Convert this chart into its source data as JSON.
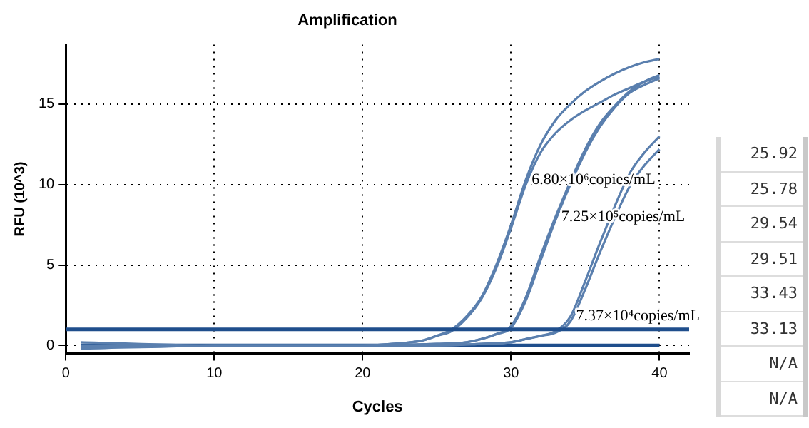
{
  "chart_data": {
    "type": "line",
    "title": "Amplification",
    "xlabel": "Cycles",
    "ylabel": "RFU (10^3)",
    "xlim": [
      0,
      42
    ],
    "ylim": [
      -0.5,
      18.7
    ],
    "xticks": [
      0,
      10,
      20,
      30,
      40
    ],
    "yticks": [
      0,
      5,
      10,
      15
    ],
    "grid": true,
    "legend": false,
    "marker": "none",
    "line_style": "solid",
    "series": [
      {
        "color": "#5a7fae",
        "x": [
          1,
          5,
          10,
          15,
          20,
          22,
          24,
          25,
          26,
          27,
          28,
          29,
          30,
          31,
          32,
          33,
          34,
          35,
          36,
          37,
          38,
          39,
          40
        ],
        "values": [
          -0.1,
          -0.1,
          0,
          0,
          0,
          0.1,
          0.3,
          0.6,
          1.0,
          1.8,
          3.0,
          5.0,
          7.5,
          10.3,
          12.5,
          14.0,
          15.0,
          15.8,
          16.4,
          16.9,
          17.3,
          17.6,
          17.8
        ]
      },
      {
        "color": "#5a7fae",
        "x": [
          1,
          5,
          10,
          15,
          20,
          22,
          24,
          25,
          26,
          27,
          28,
          29,
          30,
          31,
          32,
          33,
          34,
          35,
          36,
          37,
          38,
          39,
          40
        ],
        "values": [
          0,
          0,
          0,
          0,
          0,
          0.1,
          0.3,
          0.6,
          0.9,
          1.7,
          2.9,
          4.8,
          7.3,
          10.0,
          12.0,
          13.2,
          14.0,
          14.6,
          15.1,
          15.6,
          16.0,
          16.4,
          16.7
        ]
      },
      {
        "color": "#5a7fae",
        "x": [
          1,
          10,
          20,
          25,
          27,
          28,
          29,
          30,
          31,
          32,
          33,
          35,
          36,
          37,
          38,
          39,
          40
        ],
        "values": [
          -0.2,
          0,
          0,
          0.1,
          0.2,
          0.4,
          0.7,
          1.2,
          3.0,
          5.6,
          8.0,
          12.2,
          13.8,
          14.9,
          15.8,
          16.4,
          16.8
        ]
      },
      {
        "color": "#5a7fae",
        "x": [
          1,
          10,
          20,
          25,
          27,
          28,
          29,
          30,
          31,
          32,
          33,
          35,
          36,
          37,
          38,
          39,
          40
        ],
        "values": [
          0.2,
          0,
          0,
          0.1,
          0.2,
          0.4,
          0.7,
          1.1,
          2.8,
          5.3,
          7.8,
          12.0,
          13.6,
          14.8,
          15.7,
          16.2,
          16.6
        ]
      },
      {
        "color": "#5a7fae",
        "x": [
          1,
          10,
          20,
          25,
          28,
          30,
          31,
          32,
          33,
          34,
          35,
          36,
          38,
          39,
          40
        ],
        "values": [
          -0.1,
          0,
          0,
          0,
          0.1,
          0.2,
          0.4,
          0.6,
          0.9,
          1.8,
          4.0,
          6.4,
          10.7,
          12.0,
          13.0
        ]
      },
      {
        "color": "#5a7fae",
        "x": [
          1,
          10,
          20,
          25,
          28,
          30,
          31,
          32,
          33,
          34,
          35,
          36,
          38,
          39,
          40
        ],
        "values": [
          0,
          0,
          0,
          0,
          0.1,
          0.2,
          0.4,
          0.6,
          0.8,
          1.5,
          3.5,
          5.8,
          9.9,
          11.2,
          12.2
        ]
      },
      {
        "color": "#1f4e8c",
        "x": [
          1,
          40
        ],
        "values": [
          0,
          0
        ]
      }
    ],
    "ref_lines": [
      {
        "axis": "y",
        "value": 1,
        "color": "#1f4e8c"
      }
    ],
    "annotations": [
      {
        "text": "6.80×10⁶copies/mL",
        "x": 31,
        "y": 10.3
      },
      {
        "text": "7.25×10⁵copies/mL",
        "x": 33,
        "y": 8.0
      },
      {
        "text": "7.37×10⁴copies/mL",
        "x": 34,
        "y": 1.8
      },
      "25.92",
      "25.78",
      "29.54",
      "29.51",
      "33.43",
      "33.13",
      "N/A",
      "N/A"
    ]
  }
}
